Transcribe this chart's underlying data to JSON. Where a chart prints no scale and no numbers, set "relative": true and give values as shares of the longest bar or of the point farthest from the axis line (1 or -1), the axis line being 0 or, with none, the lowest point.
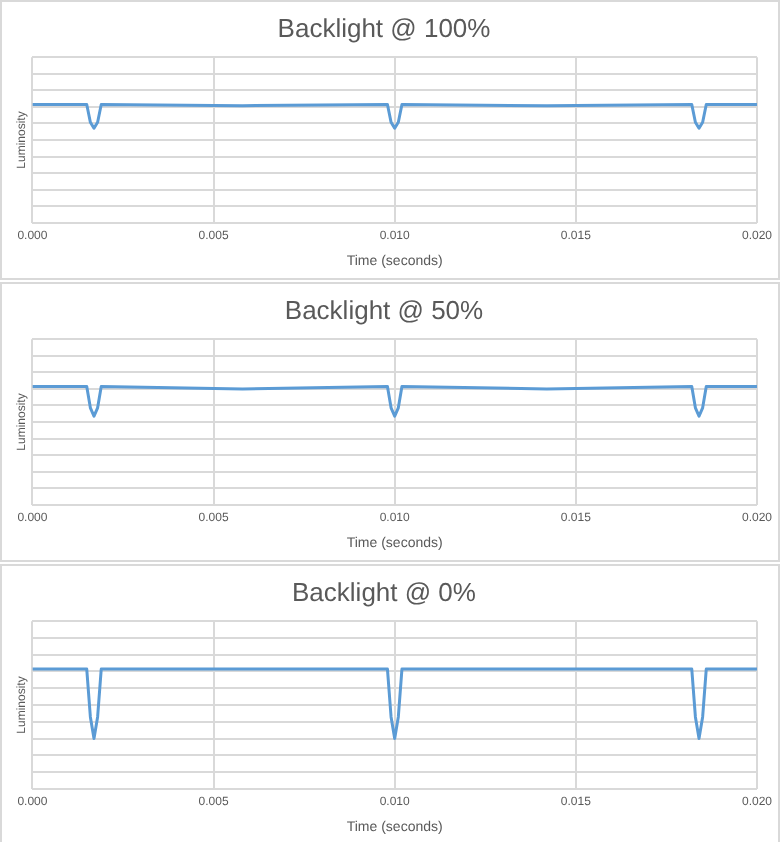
{
  "chart_data": [
    {
      "type": "line",
      "title": "Backlight @ 100%",
      "xlabel": "Time (seconds)",
      "ylabel": "Luminosity",
      "relative": true,
      "grid": true,
      "legend": false,
      "marker": "none",
      "xlim": [
        0,
        0.02
      ],
      "xticks": [
        {
          "value": 0,
          "label": "0.000"
        },
        {
          "value": 0.005,
          "label": "0.005"
        },
        {
          "value": 0.01,
          "label": "0.010"
        },
        {
          "value": 0.015,
          "label": "0.015"
        },
        {
          "value": 0.02,
          "label": "0.020"
        }
      ],
      "x": [
        0,
        0.0015,
        0.0016,
        0.0017,
        0.0018,
        0.0019,
        0.0058,
        0.0098,
        0.0099,
        0.01,
        0.0101,
        0.0102,
        0.0142,
        0.0182,
        0.0183,
        0.0184,
        0.0185,
        0.0186,
        0.02
      ],
      "series": [
        {
          "color": "#5b9bd5",
          "values": [
            1,
            1,
            0.85,
            0.8,
            0.85,
            1,
            0.99,
            1,
            0.85,
            0.8,
            0.85,
            1,
            0.99,
            1,
            0.85,
            0.8,
            0.85,
            1,
            1
          ]
        }
      ]
    },
    {
      "type": "line",
      "title": "Backlight @ 50%",
      "xlabel": "Time (seconds)",
      "ylabel": "Luminosity",
      "relative": true,
      "grid": true,
      "legend": false,
      "marker": "none",
      "xlim": [
        0,
        0.02
      ],
      "xticks": [
        {
          "value": 0,
          "label": "0.000"
        },
        {
          "value": 0.005,
          "label": "0.005"
        },
        {
          "value": 0.01,
          "label": "0.010"
        },
        {
          "value": 0.015,
          "label": "0.015"
        },
        {
          "value": 0.02,
          "label": "0.020"
        }
      ],
      "x": [
        0,
        0.0015,
        0.0016,
        0.0017,
        0.0018,
        0.0019,
        0.0058,
        0.0098,
        0.0099,
        0.01,
        0.0101,
        0.0102,
        0.0142,
        0.0182,
        0.0183,
        0.0184,
        0.0185,
        0.0186,
        0.02
      ],
      "series": [
        {
          "color": "#5b9bd5",
          "values": [
            1,
            1,
            0.82,
            0.75,
            0.82,
            1,
            0.98,
            1,
            0.82,
            0.75,
            0.82,
            1,
            0.98,
            1,
            0.82,
            0.75,
            0.82,
            1,
            1
          ]
        }
      ]
    },
    {
      "type": "line",
      "title": "Backlight @ 0%",
      "xlabel": "Time (seconds)",
      "ylabel": "Luminosity",
      "relative": true,
      "grid": true,
      "legend": false,
      "marker": "none",
      "xlim": [
        0,
        0.02
      ],
      "xticks": [
        {
          "value": 0,
          "label": "0.000"
        },
        {
          "value": 0.005,
          "label": "0.005"
        },
        {
          "value": 0.01,
          "label": "0.010"
        },
        {
          "value": 0.015,
          "label": "0.015"
        },
        {
          "value": 0.02,
          "label": "0.020"
        }
      ],
      "x": [
        0,
        0.0015,
        0.0016,
        0.0017,
        0.0018,
        0.0019,
        0.0098,
        0.0099,
        0.01,
        0.0101,
        0.0102,
        0.0182,
        0.0183,
        0.0184,
        0.0185,
        0.0186,
        0.02
      ],
      "series": [
        {
          "color": "#5b9bd5",
          "values": [
            1,
            1,
            0.6,
            0.42,
            0.6,
            1,
            1,
            0.6,
            0.42,
            0.6,
            1,
            1,
            0.6,
            0.42,
            0.6,
            1,
            1
          ]
        }
      ]
    }
  ]
}
